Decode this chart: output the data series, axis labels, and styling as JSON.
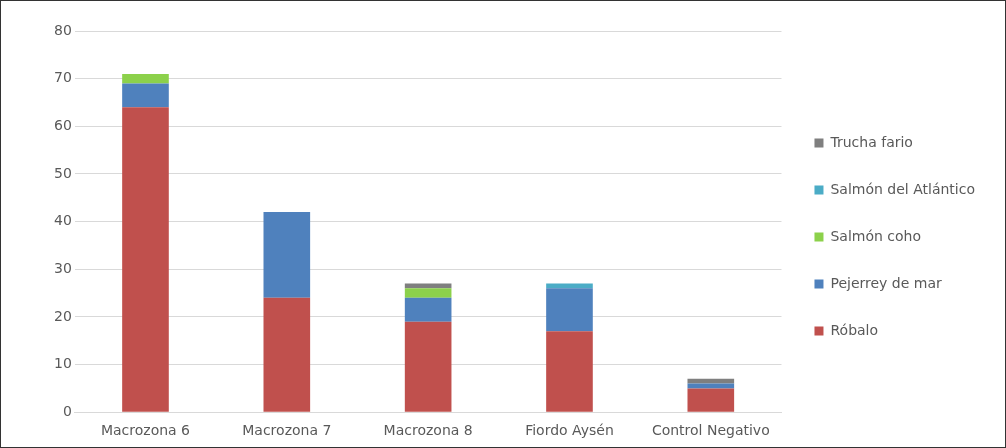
{
  "chart_data": {
    "type": "bar",
    "stacked": true,
    "categories": [
      "Macrozona 6",
      "Macrozona 7",
      "Macrozona 8",
      "Fiordo Aysén",
      "Control Negativo"
    ],
    "series": [
      {
        "name": "Róbalo",
        "color": "#c0504d",
        "values": [
          64,
          24,
          19,
          17,
          5
        ]
      },
      {
        "name": "Pejerrey de mar",
        "color": "#4f81bd",
        "values": [
          5,
          18,
          5,
          9,
          1
        ]
      },
      {
        "name": "Salmón coho",
        "color": "#8cd14b",
        "values": [
          2,
          0,
          2,
          0,
          0
        ]
      },
      {
        "name": "Salmón del Atlántico",
        "color": "#4bacc6",
        "values": [
          0,
          0,
          0,
          1,
          0
        ]
      },
      {
        "name": "Trucha fario",
        "color": "#7f7f7f",
        "values": [
          0,
          0,
          1,
          0,
          1
        ]
      }
    ],
    "ylim": [
      0,
      80
    ],
    "yticks": [
      0,
      10,
      20,
      30,
      40,
      50,
      60,
      70,
      80
    ],
    "grid": "y",
    "legend": "right"
  }
}
